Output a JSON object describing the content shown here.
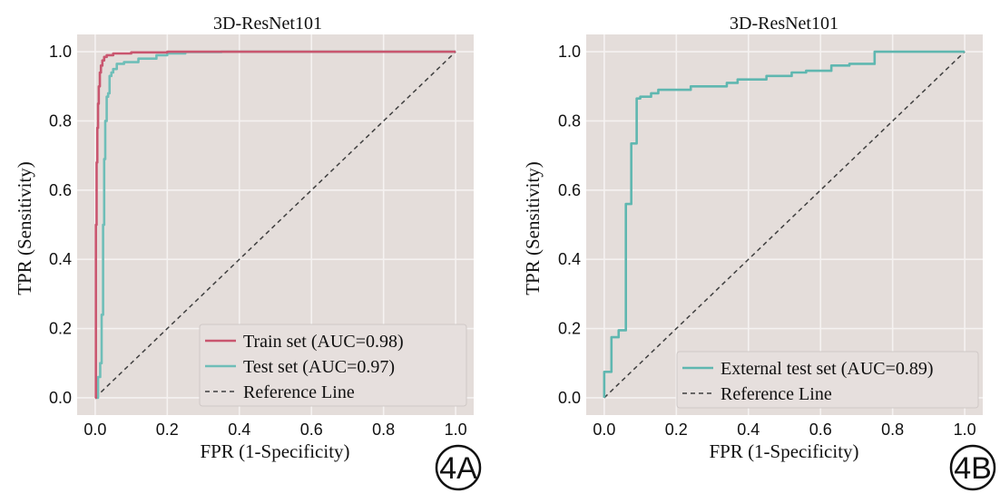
{
  "colors": {
    "plot_bg": "#e4ddda",
    "grid": "#f5f2f1",
    "train": "#c9566f",
    "test": "#6fbeb8",
    "external": "#5fb7b0",
    "reference": "#3f3f3f",
    "legend_bg": "#e6dfdd",
    "legend_border": "#cfc8c6"
  },
  "chart_data": [
    {
      "id": "4A",
      "type": "line",
      "title": "3D-ResNet101",
      "xlabel": "FPR (1-Specificity)",
      "ylabel": "TPR (Sensitivity)",
      "xlim": [
        -0.05,
        1.05
      ],
      "ylim": [
        -0.05,
        1.05
      ],
      "xticks": [
        0.0,
        0.2,
        0.4,
        0.6,
        0.8,
        1.0
      ],
      "yticks": [
        0.0,
        0.2,
        0.4,
        0.6,
        0.8,
        1.0
      ],
      "xtick_labels": [
        "0.0",
        "0.2",
        "0.4",
        "0.6",
        "0.8",
        "1.0"
      ],
      "ytick_labels": [
        "0.0",
        "0.2",
        "0.4",
        "0.6",
        "0.8",
        "1.0"
      ],
      "grid": true,
      "legend_position": "lower-right",
      "badge": "4A",
      "series": [
        {
          "name": "Train set (AUC=0.98)",
          "color_key": "train",
          "dash": false,
          "x": [
            0.0,
            0.002,
            0.002,
            0.004,
            0.004,
            0.006,
            0.006,
            0.008,
            0.008,
            0.01,
            0.01,
            0.013,
            0.013,
            0.016,
            0.016,
            0.02,
            0.02,
            0.025,
            0.025,
            0.032,
            0.032,
            0.05,
            0.05,
            0.1,
            0.1,
            0.2,
            0.2,
            0.3,
            1.0
          ],
          "y": [
            0.0,
            0.0,
            0.5,
            0.5,
            0.68,
            0.68,
            0.78,
            0.78,
            0.85,
            0.85,
            0.9,
            0.9,
            0.94,
            0.94,
            0.96,
            0.96,
            0.975,
            0.975,
            0.985,
            0.985,
            0.99,
            0.99,
            0.995,
            0.995,
            0.998,
            0.998,
            1.0,
            1.0,
            1.0
          ]
        },
        {
          "name": "Test set (AUC=0.97)",
          "color_key": "test",
          "dash": false,
          "x": [
            0.0,
            0.008,
            0.008,
            0.014,
            0.014,
            0.018,
            0.018,
            0.022,
            0.022,
            0.025,
            0.025,
            0.028,
            0.028,
            0.032,
            0.032,
            0.036,
            0.036,
            0.04,
            0.04,
            0.045,
            0.045,
            0.05,
            0.05,
            0.06,
            0.06,
            0.08,
            0.08,
            0.12,
            0.12,
            0.17,
            0.17,
            0.2,
            0.2,
            0.25,
            0.25,
            0.35,
            0.35,
            1.0
          ],
          "y": [
            0.0,
            0.0,
            0.06,
            0.06,
            0.1,
            0.1,
            0.24,
            0.24,
            0.5,
            0.5,
            0.69,
            0.69,
            0.8,
            0.8,
            0.87,
            0.87,
            0.88,
            0.88,
            0.93,
            0.93,
            0.94,
            0.94,
            0.95,
            0.95,
            0.965,
            0.965,
            0.97,
            0.97,
            0.98,
            0.98,
            0.99,
            0.99,
            0.995,
            0.995,
            0.999,
            0.999,
            1.0,
            1.0
          ]
        },
        {
          "name": "Reference Line",
          "color_key": "reference",
          "dash": true,
          "x": [
            0.0,
            1.0
          ],
          "y": [
            0.0,
            1.0
          ]
        }
      ]
    },
    {
      "id": "4B",
      "type": "line",
      "title": "3D-ResNet101",
      "xlabel": "FPR (1-Specificity)",
      "ylabel": "TPR (Sensitivity)",
      "xlim": [
        -0.05,
        1.05
      ],
      "ylim": [
        -0.05,
        1.05
      ],
      "xticks": [
        0.0,
        0.2,
        0.4,
        0.6,
        0.8,
        1.0
      ],
      "yticks": [
        0.0,
        0.2,
        0.4,
        0.6,
        0.8,
        1.0
      ],
      "xtick_labels": [
        "0.0",
        "0.2",
        "0.4",
        "0.6",
        "0.8",
        "1.0"
      ],
      "ytick_labels": [
        "0.0",
        "0.2",
        "0.4",
        "0.6",
        "0.8",
        "1.0"
      ],
      "grid": true,
      "legend_position": "lower-right",
      "badge": "4B",
      "series": [
        {
          "name": "External test set (AUC=0.89)",
          "color_key": "external",
          "dash": false,
          "x": [
            0.0,
            0.0,
            0.02,
            0.02,
            0.04,
            0.04,
            0.06,
            0.06,
            0.075,
            0.075,
            0.09,
            0.09,
            0.1,
            0.1,
            0.13,
            0.13,
            0.15,
            0.15,
            0.24,
            0.24,
            0.34,
            0.34,
            0.37,
            0.37,
            0.45,
            0.45,
            0.52,
            0.52,
            0.56,
            0.56,
            0.63,
            0.63,
            0.68,
            0.68,
            0.75,
            0.75,
            1.0
          ],
          "y": [
            0.0,
            0.075,
            0.075,
            0.175,
            0.175,
            0.195,
            0.195,
            0.56,
            0.56,
            0.735,
            0.735,
            0.865,
            0.865,
            0.87,
            0.87,
            0.88,
            0.88,
            0.89,
            0.89,
            0.9,
            0.9,
            0.91,
            0.91,
            0.92,
            0.92,
            0.93,
            0.93,
            0.94,
            0.94,
            0.945,
            0.945,
            0.96,
            0.96,
            0.965,
            0.965,
            1.0,
            1.0
          ]
        },
        {
          "name": "Reference Line",
          "color_key": "reference",
          "dash": true,
          "x": [
            0.0,
            1.0
          ],
          "y": [
            0.0,
            1.0
          ]
        }
      ]
    }
  ]
}
